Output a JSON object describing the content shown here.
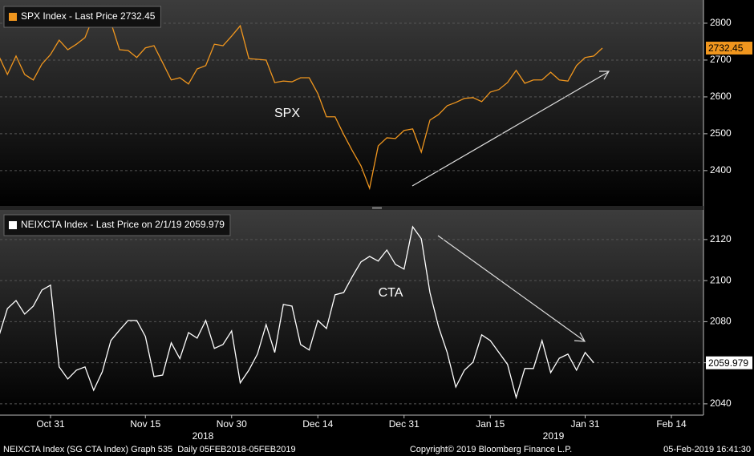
{
  "chart_data": [
    {
      "type": "line",
      "title": "SPX Index - Last Price 2732.45",
      "annotation": "SPX",
      "ylim": [
        2304,
        2863
      ],
      "yticks": [
        2400,
        2500,
        2600,
        2700,
        2800
      ],
      "grid": true,
      "series": [
        {
          "name": "SPX Index",
          "color": "#f0961e",
          "values": [
            2711,
            2661,
            2711,
            2661,
            2646,
            2689,
            2715,
            2754,
            2728,
            2743,
            2761,
            2820,
            2824,
            2802,
            2728,
            2726,
            2707,
            2733,
            2739,
            2693,
            2646,
            2652,
            2635,
            2676,
            2685,
            2743,
            2739,
            2765,
            2793,
            2704,
            2702,
            2700,
            2639,
            2643,
            2641,
            2652,
            2652,
            2609,
            2546,
            2546,
            2498,
            2454,
            2413,
            2352,
            2467,
            2489,
            2487,
            2509,
            2513,
            2450,
            2537,
            2552,
            2576,
            2585,
            2596,
            2598,
            2587,
            2613,
            2620,
            2639,
            2672,
            2637,
            2646,
            2646,
            2667,
            2646,
            2643,
            2685,
            2707,
            2711,
            2732.45,
            null,
            null,
            null,
            null,
            null,
            null,
            null,
            null,
            null,
            null,
            null
          ]
        }
      ]
    },
    {
      "type": "line",
      "title": "NEIXCTA Index - Last Price on 2/1/19 2059.979",
      "annotation": "CTA",
      "categories": [
        null,
        null,
        null,
        null,
        null,
        null,
        "Oct 31",
        null,
        null,
        null,
        null,
        null,
        null,
        null,
        null,
        null,
        null,
        "Nov 15",
        null,
        null,
        null,
        null,
        null,
        null,
        null,
        null,
        null,
        "Nov 30",
        null,
        null,
        null,
        null,
        null,
        null,
        null,
        null,
        null,
        "Dec 14",
        null,
        null,
        null,
        null,
        null,
        null,
        null,
        null,
        null,
        "Dec 31",
        null,
        null,
        null,
        null,
        null,
        null,
        null,
        null,
        null,
        "Jan 15",
        null,
        null,
        null,
        null,
        null,
        null,
        null,
        null,
        null,
        null,
        "Jan 31",
        null,
        null,
        null,
        null,
        null,
        null,
        null,
        null,
        null,
        "Feb 14",
        null,
        null,
        null
      ],
      "year_labels": [
        "2018",
        "2019"
      ],
      "ylim": [
        2034.5,
        2134.4
      ],
      "yticks": [
        2040,
        2060,
        2080,
        2100,
        2120
      ],
      "grid": true,
      "series": [
        {
          "name": "NEIXCTA Index",
          "color": "#ffffff",
          "values": [
            2072.8,
            2086.4,
            2090.3,
            2083.7,
            2087.6,
            2095.4,
            2097.8,
            2058,
            2052.1,
            2056.4,
            2058,
            2046.6,
            2055.6,
            2070.8,
            2075.9,
            2080.6,
            2080.6,
            2072.8,
            2053.3,
            2054,
            2069.7,
            2062,
            2074.7,
            2072,
            2080.6,
            2067,
            2068.9,
            2075.5,
            2050.2,
            2056.4,
            2064.3,
            2078.6,
            2065,
            2088.4,
            2087.6,
            2068.9,
            2066.2,
            2080.6,
            2076.7,
            2093.1,
            2094.2,
            2102,
            2109.1,
            2111.8,
            2109.5,
            2114.9,
            2107.9,
            2105.6,
            2126.2,
            2120.4,
            2094.2,
            2077.5,
            2065,
            2048.2,
            2056.4,
            2060.3,
            2073.6,
            2070.8,
            2065,
            2059.2,
            2043.1,
            2057.2,
            2057.2,
            2070.8,
            2055.2,
            2062.2,
            2064.2,
            2056.4,
            2065,
            2059.979,
            null,
            null,
            null,
            null,
            null,
            null,
            null,
            null,
            null,
            null,
            null,
            null
          ]
        }
      ]
    }
  ],
  "footer": {
    "left": "NEIXCTA Index (SG CTA Index) Graph 535  Daily 05FEB2018-05FEB2019",
    "center": "Copyright© 2019 Bloomberg Finance L.P.",
    "right": "05-Feb-2019 16:41:30"
  }
}
